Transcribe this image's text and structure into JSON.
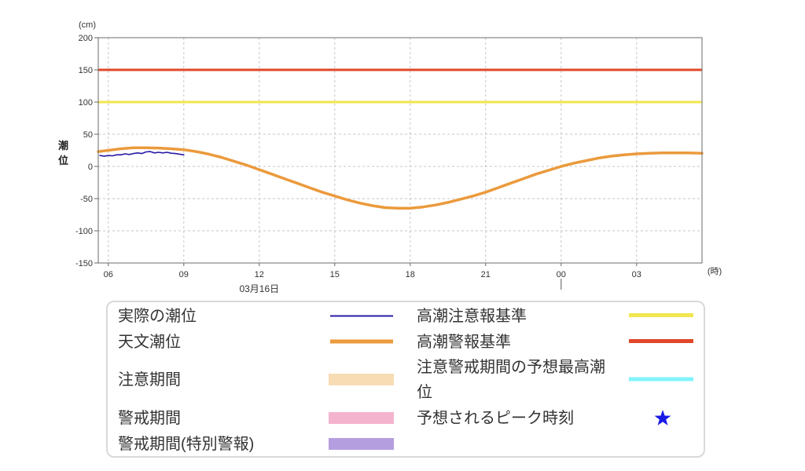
{
  "chart_data": {
    "type": "line",
    "ylabel": "潮位",
    "y_unit": "(cm)",
    "x_unit": "(時)",
    "date_label": "03月16日",
    "ylim": [
      -150,
      200
    ],
    "yticks": [
      200,
      150,
      100,
      50,
      0,
      -50,
      -100,
      -150
    ],
    "xlim": [
      "05:36",
      "05:36"
    ],
    "xticks": [
      "06",
      "09",
      "12",
      "15",
      "18",
      "21",
      "00",
      "03"
    ],
    "grid": true,
    "legend_position": "bottom",
    "series": [
      {
        "name": "実際の潮位",
        "color": "#2a1aa6",
        "points": [
          [
            "05:40",
            17
          ],
          [
            "05:50",
            16
          ],
          [
            "06:00",
            17
          ],
          [
            "06:10",
            16.5
          ],
          [
            "06:20",
            18
          ],
          [
            "06:30",
            18
          ],
          [
            "06:40",
            19.5
          ],
          [
            "06:50",
            18.5
          ],
          [
            "07:00",
            20
          ],
          [
            "07:10",
            21
          ],
          [
            "07:20",
            20
          ],
          [
            "07:30",
            22.5
          ],
          [
            "07:40",
            23
          ],
          [
            "07:50",
            21
          ],
          [
            "08:00",
            22
          ],
          [
            "08:10",
            21
          ],
          [
            "08:20",
            22
          ],
          [
            "08:30",
            20.5
          ],
          [
            "08:40",
            20
          ],
          [
            "08:50",
            19
          ],
          [
            "09:00",
            18
          ]
        ]
      },
      {
        "name": "天文潮位",
        "color": "#eb9a3c",
        "points": [
          [
            "05:36",
            23
          ],
          [
            "06:00",
            25
          ],
          [
            "06:30",
            27.5
          ],
          [
            "07:00",
            29
          ],
          [
            "07:30",
            29
          ],
          [
            "08:00",
            28.5
          ],
          [
            "08:30",
            27.5
          ],
          [
            "09:00",
            26
          ],
          [
            "09:30",
            23
          ],
          [
            "10:00",
            19
          ],
          [
            "10:30",
            14
          ],
          [
            "11:00",
            8
          ],
          [
            "11:30",
            2
          ],
          [
            "12:00",
            -5
          ],
          [
            "12:30",
            -12
          ],
          [
            "13:00",
            -19
          ],
          [
            "13:30",
            -26
          ],
          [
            "14:00",
            -33
          ],
          [
            "14:30",
            -40
          ],
          [
            "15:00",
            -46
          ],
          [
            "15:30",
            -52
          ],
          [
            "16:00",
            -57
          ],
          [
            "16:30",
            -61
          ],
          [
            "17:00",
            -64
          ],
          [
            "17:30",
            -65
          ],
          [
            "18:00",
            -65
          ],
          [
            "18:30",
            -63
          ],
          [
            "19:00",
            -60
          ],
          [
            "19:30",
            -56
          ],
          [
            "20:00",
            -51
          ],
          [
            "20:30",
            -46
          ],
          [
            "21:00",
            -40
          ],
          [
            "21:30",
            -33
          ],
          [
            "22:00",
            -26
          ],
          [
            "22:30",
            -19
          ],
          [
            "23:00",
            -12
          ],
          [
            "23:30",
            -6
          ],
          [
            "00:00",
            0
          ],
          [
            "00:30",
            5
          ],
          [
            "01:00",
            9
          ],
          [
            "01:30",
            13
          ],
          [
            "02:00",
            16
          ],
          [
            "02:30",
            18
          ],
          [
            "03:00",
            19.5
          ],
          [
            "03:30",
            20.5
          ],
          [
            "04:00",
            21
          ],
          [
            "04:30",
            21
          ],
          [
            "05:00",
            21
          ],
          [
            "05:36",
            20.5
          ]
        ]
      },
      {
        "name": "高潮注意報基準",
        "color": "#f2e64e",
        "value": 100
      },
      {
        "name": "高潮警報基準",
        "color": "#e0482a",
        "value": 150
      }
    ],
    "legend_other": [
      {
        "label": "注意期間",
        "symbol": "box-swatch",
        "color": "#f7dcb4"
      },
      {
        "label": "警戒期間",
        "symbol": "box-swatch",
        "color": "#f4b3cd"
      },
      {
        "label": "警戒期間(特別警報)",
        "symbol": "box-swatch",
        "color": "#b59ee0"
      },
      {
        "label": "注意警戒期間の予想最高潮位",
        "symbol": "line-swatch",
        "color": "#80f4fc"
      },
      {
        "label": "予想されるピーク時刻",
        "symbol": "star-icon",
        "color": "#1a1ae6"
      }
    ]
  }
}
